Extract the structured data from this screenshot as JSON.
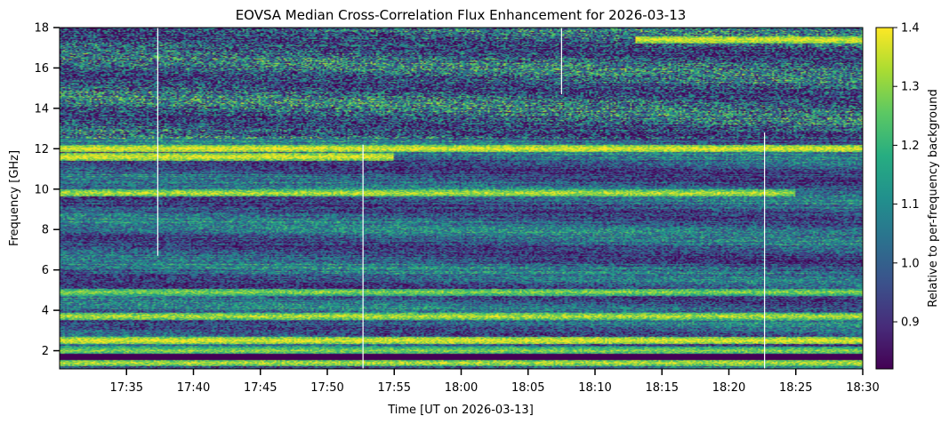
{
  "chart_data": {
    "type": "heatmap",
    "title": "EOVSA Median Cross-Correlation Flux Enhancement for 2026-03-13",
    "xlabel": "Time [UT on 2026-03-13]",
    "ylabel": "Frequency [GHz]",
    "colorbar_label": "Relative to per-frequency background",
    "colormap": "viridis",
    "colormap_stops": [
      "#440154",
      "#472c7a",
      "#3b518b",
      "#2c718e",
      "#21908d",
      "#27ad81",
      "#5cc863",
      "#aadc32",
      "#fde725"
    ],
    "x_range": [
      "17:30",
      "18:30"
    ],
    "x_ticks": [
      "17:35",
      "17:40",
      "17:45",
      "17:50",
      "17:55",
      "18:00",
      "18:05",
      "18:10",
      "18:15",
      "18:20",
      "18:25",
      "18:30"
    ],
    "y_range": [
      1.1,
      18.0
    ],
    "y_ticks": [
      "2",
      "4",
      "6",
      "8",
      "10",
      "12",
      "14",
      "16",
      "18"
    ],
    "color_range": [
      0.82,
      1.4
    ],
    "colorbar_ticks": [
      "0.9",
      "1.0",
      "1.1",
      "1.2",
      "1.3",
      "1.4"
    ],
    "bright_bands_ghz": [
      {
        "freq": 12.0,
        "strength": 1.4,
        "from": "17:30",
        "to": "18:30"
      },
      {
        "freq": 11.6,
        "strength": 1.4,
        "from": "17:30",
        "to": "17:55"
      },
      {
        "freq": 17.4,
        "strength": 1.4,
        "from": "18:13",
        "to": "18:30"
      },
      {
        "freq": 9.8,
        "strength": 1.35,
        "from": "17:30",
        "to": "18:25"
      },
      {
        "freq": 4.9,
        "strength": 1.3,
        "from": "17:30",
        "to": "18:30"
      },
      {
        "freq": 3.7,
        "strength": 1.35,
        "from": "17:30",
        "to": "18:30"
      },
      {
        "freq": 2.5,
        "strength": 1.4,
        "from": "17:30",
        "to": "18:30"
      },
      {
        "freq": 2.0,
        "strength": 1.3,
        "from": "17:30",
        "to": "18:30"
      },
      {
        "freq": 1.4,
        "strength": 1.35,
        "from": "17:30",
        "to": "18:30"
      }
    ],
    "gaps": [
      {
        "time": "17:37:20",
        "freq_from": 6.7,
        "freq_to": 18.0
      },
      {
        "time": "17:52:40",
        "freq_from": 1.1,
        "freq_to": 12.2
      },
      {
        "time": "18:07:30",
        "freq_from": 14.7,
        "freq_to": 18.0
      },
      {
        "time": "18:22:40",
        "freq_from": 1.1,
        "freq_to": 12.8
      }
    ]
  }
}
